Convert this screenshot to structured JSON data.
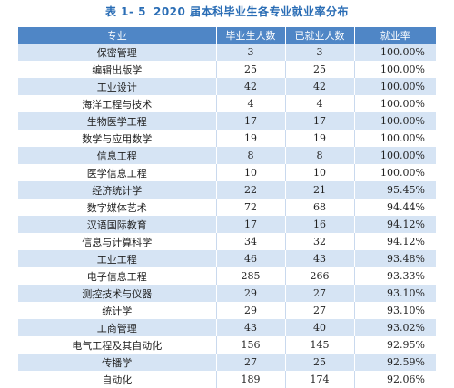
{
  "title": {
    "number": "表 1- 5",
    "text": "2020 届本科毕业生各专业就业率分布"
  },
  "table": {
    "headers": [
      "专业",
      "毕业生人数",
      "已就业人数",
      "就业率"
    ],
    "rows": [
      [
        "保密管理",
        "3",
        "3",
        "100.00%"
      ],
      [
        "编辑出版学",
        "25",
        "25",
        "100.00%"
      ],
      [
        "工业设计",
        "42",
        "42",
        "100.00%"
      ],
      [
        "海洋工程与技术",
        "4",
        "4",
        "100.00%"
      ],
      [
        "生物医学工程",
        "17",
        "17",
        "100.00%"
      ],
      [
        "数学与应用数学",
        "19",
        "19",
        "100.00%"
      ],
      [
        "信息工程",
        "8",
        "8",
        "100.00%"
      ],
      [
        "医学信息工程",
        "10",
        "10",
        "100.00%"
      ],
      [
        "经济统计学",
        "22",
        "21",
        "95.45%"
      ],
      [
        "数字媒体艺术",
        "72",
        "68",
        "94.44%"
      ],
      [
        "汉语国际教育",
        "17",
        "16",
        "94.12%"
      ],
      [
        "信息与计算科学",
        "34",
        "32",
        "94.12%"
      ],
      [
        "工业工程",
        "46",
        "43",
        "93.48%"
      ],
      [
        "电子信息工程",
        "285",
        "266",
        "93.33%"
      ],
      [
        "测控技术与仪器",
        "29",
        "27",
        "93.10%"
      ],
      [
        "统计学",
        "29",
        "27",
        "93.10%"
      ],
      [
        "工商管理",
        "43",
        "40",
        "93.02%"
      ],
      [
        "电气工程及其自动化",
        "156",
        "145",
        "92.95%"
      ],
      [
        "传播学",
        "27",
        "25",
        "92.59%"
      ],
      [
        "自动化",
        "189",
        "174",
        "92.06%"
      ]
    ]
  }
}
